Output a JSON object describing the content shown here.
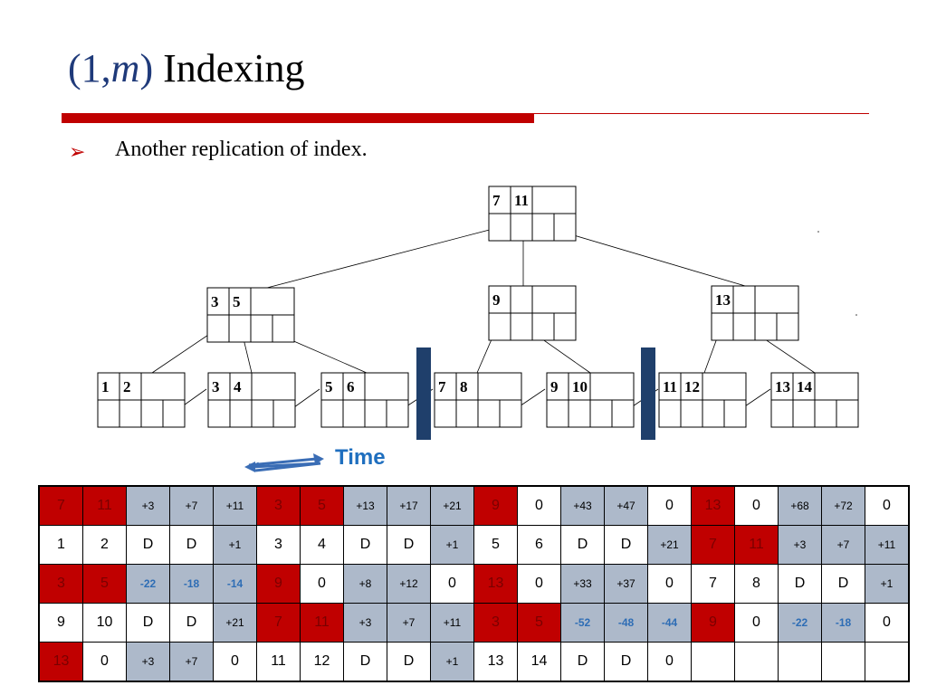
{
  "slide": {
    "title_prefix": "(1,",
    "title_var": "m",
    "title_suffix": ")",
    "title_word": "Indexing",
    "bullet_marker": "➢",
    "bullet_text": "Another replication of index."
  },
  "tree": {
    "root": [
      "7",
      "11",
      ""
    ],
    "internal": [
      [
        "3",
        "5",
        ""
      ],
      [
        "9",
        "",
        ""
      ],
      [
        "13",
        "",
        ""
      ]
    ],
    "leaves": [
      [
        "1",
        "2",
        ""
      ],
      [
        "3",
        "4",
        ""
      ],
      [
        "5",
        "6",
        ""
      ],
      [
        "7",
        "8",
        ""
      ],
      [
        "9",
        "10",
        ""
      ],
      [
        "11",
        "12",
        ""
      ],
      [
        "13",
        "14",
        ""
      ]
    ]
  },
  "time_label": "Time",
  "colors": {
    "red": "#c00000",
    "grey": "#adb9ca",
    "navy": "#1f3f6b",
    "time_blue": "#1f6fbf"
  },
  "broadcast_table": {
    "rows": [
      [
        [
          "7",
          "red"
        ],
        [
          "11",
          "red"
        ],
        [
          "+3",
          "grey"
        ],
        [
          "+7",
          "grey"
        ],
        [
          "+11",
          "grey"
        ],
        [
          "3",
          "red"
        ],
        [
          "5",
          "red"
        ],
        [
          "+13",
          "grey"
        ],
        [
          "+17",
          "grey"
        ],
        [
          "+21",
          "grey"
        ],
        [
          "9",
          "red"
        ],
        [
          "0",
          "white"
        ],
        [
          "+43",
          "grey"
        ],
        [
          "+47",
          "grey"
        ],
        [
          "0",
          "white"
        ],
        [
          "13",
          "red"
        ],
        [
          "0",
          "white"
        ],
        [
          "+68",
          "grey"
        ],
        [
          "+72",
          "grey"
        ],
        [
          "0",
          "white"
        ]
      ],
      [
        [
          "1",
          "white"
        ],
        [
          "2",
          "white"
        ],
        [
          "D",
          "white"
        ],
        [
          "D",
          "white"
        ],
        [
          "+1",
          "grey"
        ],
        [
          "3",
          "white"
        ],
        [
          "4",
          "white"
        ],
        [
          "D",
          "white"
        ],
        [
          "D",
          "white"
        ],
        [
          "+1",
          "grey"
        ],
        [
          "5",
          "white"
        ],
        [
          "6",
          "white"
        ],
        [
          "D",
          "white"
        ],
        [
          "D",
          "white"
        ],
        [
          "+21",
          "grey"
        ],
        [
          "7",
          "red"
        ],
        [
          "11",
          "red"
        ],
        [
          "+3",
          "grey"
        ],
        [
          "+7",
          "grey"
        ],
        [
          "+11",
          "grey"
        ]
      ],
      [
        [
          "3",
          "red"
        ],
        [
          "5",
          "red"
        ],
        [
          "-22",
          "grey"
        ],
        [
          "-18",
          "grey"
        ],
        [
          "-14",
          "grey"
        ],
        [
          "9",
          "red"
        ],
        [
          "0",
          "white"
        ],
        [
          "+8",
          "grey"
        ],
        [
          "+12",
          "grey"
        ],
        [
          "0",
          "white"
        ],
        [
          "13",
          "red"
        ],
        [
          "0",
          "white"
        ],
        [
          "+33",
          "grey"
        ],
        [
          "+37",
          "grey"
        ],
        [
          "0",
          "white"
        ],
        [
          "7",
          "white"
        ],
        [
          "8",
          "white"
        ],
        [
          "D",
          "white"
        ],
        [
          "D",
          "white"
        ],
        [
          "+1",
          "grey"
        ]
      ],
      [
        [
          "9",
          "white"
        ],
        [
          "10",
          "white"
        ],
        [
          "D",
          "white"
        ],
        [
          "D",
          "white"
        ],
        [
          "+21",
          "grey"
        ],
        [
          "7",
          "red"
        ],
        [
          "11",
          "red"
        ],
        [
          "+3",
          "grey"
        ],
        [
          "+7",
          "grey"
        ],
        [
          "+11",
          "grey"
        ],
        [
          "3",
          "red"
        ],
        [
          "5",
          "red"
        ],
        [
          "-52",
          "grey"
        ],
        [
          "-48",
          "grey"
        ],
        [
          "-44",
          "grey"
        ],
        [
          "9",
          "red"
        ],
        [
          "0",
          "white"
        ],
        [
          "-22",
          "grey"
        ],
        [
          "-18",
          "grey"
        ],
        [
          "0",
          "white"
        ]
      ],
      [
        [
          "13",
          "red"
        ],
        [
          "0",
          "white"
        ],
        [
          "+3",
          "grey"
        ],
        [
          "+7",
          "grey"
        ],
        [
          "0",
          "white"
        ],
        [
          "11",
          "white"
        ],
        [
          "12",
          "white"
        ],
        [
          "D",
          "white"
        ],
        [
          "D",
          "white"
        ],
        [
          "+1",
          "grey"
        ],
        [
          "13",
          "white"
        ],
        [
          "14",
          "white"
        ],
        [
          "D",
          "white"
        ],
        [
          "D",
          "white"
        ],
        [
          "0",
          "white"
        ],
        [
          "",
          "white"
        ],
        [
          "",
          "white"
        ],
        [
          "",
          "white"
        ],
        [
          "",
          "white"
        ],
        [
          "",
          "white"
        ]
      ]
    ]
  }
}
